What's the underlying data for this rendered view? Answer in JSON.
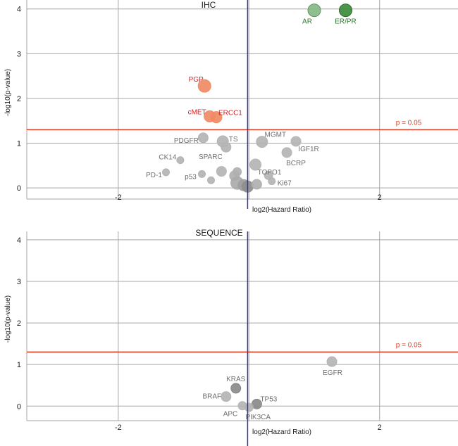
{
  "colors": {
    "grid": "#a6a6a6",
    "vline": "#2e36a8",
    "threshold": "#e03b1c",
    "red_label": "#e0191c",
    "green_label": "#2a7a2a",
    "gray_label": "#6e6e6e",
    "axis_text": "#1a1a1a"
  },
  "chart_data": [
    {
      "type": "scatter",
      "title": "IHC",
      "xlabel": "log2(Hazard Ratio)",
      "ylabel": "-log10(p-value)",
      "xlim": [
        -3.4,
        3.2
      ],
      "ylim": [
        -0.25,
        4.2
      ],
      "xticks": [
        -2,
        2
      ],
      "xtick_labels": [
        "-2",
        "2"
      ],
      "yticks": [
        0,
        1,
        2,
        3,
        4
      ],
      "ytick_labels": [
        "0",
        "1",
        "2",
        "3",
        "4"
      ],
      "x_grid": [
        -2,
        0,
        2
      ],
      "y_grid": [
        0,
        1,
        2,
        3,
        4
      ],
      "center_line_x": -0.02,
      "threshold": {
        "y": 1.301,
        "label": "p = 0.05"
      },
      "points": [
        {
          "label": "AR",
          "x": 1.0,
          "y": 3.97,
          "size": 9,
          "fill": "#86b886",
          "stroke": "#5e965e",
          "label_color": "#2a7a2a"
        },
        {
          "label": "ER/PR",
          "x": 1.48,
          "y": 3.97,
          "size": 9,
          "fill": "#3c8c3c",
          "stroke": "#2a6a2a",
          "label_color": "#2a7a2a"
        },
        {
          "label": "PGP",
          "x": -0.68,
          "y": 2.28,
          "size": 9,
          "fill": "#f08a64",
          "stroke": "#f08a64",
          "label_color": "#e0191c"
        },
        {
          "label": "cMET",
          "x": -0.6,
          "y": 1.6,
          "size": 8,
          "fill": "#f08a64",
          "stroke": "#f08a64",
          "label_color": "#e0191c"
        },
        {
          "label": "ERCC1",
          "x": -0.5,
          "y": 1.58,
          "size": 8,
          "fill": "#f08a64",
          "stroke": "#f08a64",
          "label_color": "#e0191c"
        },
        {
          "label": "PDGFR",
          "x": -0.7,
          "y": 1.12,
          "size": 7,
          "fill": "#b4b4b4",
          "stroke": "#b4b4b4",
          "label_color": "#6e6e6e"
        },
        {
          "label": "TS",
          "x": -0.4,
          "y": 1.04,
          "size": 8,
          "fill": "#b4b4b4",
          "stroke": "#b4b4b4",
          "label_color": "#6e6e6e"
        },
        {
          "label": "SPARC",
          "x": -0.35,
          "y": 0.91,
          "size": 7,
          "fill": "#b4b4b4",
          "stroke": "#b4b4b4",
          "label_color": "#6e6e6e"
        },
        {
          "label": "MGMT",
          "x": 0.2,
          "y": 1.03,
          "size": 8,
          "fill": "#b4b4b4",
          "stroke": "#b4b4b4",
          "label_color": "#6e6e6e"
        },
        {
          "label": "IGF1R",
          "x": 0.72,
          "y": 1.04,
          "size": 7,
          "fill": "#b4b4b4",
          "stroke": "#b4b4b4",
          "label_color": "#6e6e6e"
        },
        {
          "label": "BCRP",
          "x": 0.58,
          "y": 0.79,
          "size": 7,
          "fill": "#b4b4b4",
          "stroke": "#b4b4b4",
          "label_color": "#6e6e6e"
        },
        {
          "label": "CK14",
          "x": -1.05,
          "y": 0.62,
          "size": 5,
          "fill": "#b4b4b4",
          "stroke": "#b4b4b4",
          "label_color": "#6e6e6e"
        },
        {
          "label": "PD-1",
          "x": -1.27,
          "y": 0.35,
          "size": 5,
          "fill": "#b4b4b4",
          "stroke": "#b4b4b4",
          "label_color": "#6e6e6e"
        },
        {
          "label": "p53",
          "x": -0.72,
          "y": 0.31,
          "size": 5,
          "fill": "#b4b4b4",
          "stroke": "#b4b4b4",
          "label_color": "#6e6e6e"
        },
        {
          "label": "TOPO1",
          "x": 0.1,
          "y": 0.52,
          "size": 8,
          "fill": "#b4b4b4",
          "stroke": "#b4b4b4",
          "label_color": "#6e6e6e"
        },
        {
          "label": "Ki67",
          "x": 0.35,
          "y": 0.15,
          "size": 5,
          "fill": "#b4b4b4",
          "stroke": "#b4b4b4",
          "label_color": "#6e6e6e"
        },
        {
          "label": "",
          "x": -0.58,
          "y": 0.17,
          "size": 5,
          "fill": "#b4b4b4",
          "stroke": "#b4b4b4",
          "label_color": "#6e6e6e"
        },
        {
          "label": "",
          "x": -0.42,
          "y": 0.37,
          "size": 7,
          "fill": "#b4b4b4",
          "stroke": "#b4b4b4",
          "label_color": "#6e6e6e"
        },
        {
          "label": "",
          "x": -0.22,
          "y": 0.27,
          "size": 7,
          "fill": "#b0b0b0",
          "stroke": "#b0b0b0",
          "label_color": "#6e6e6e"
        },
        {
          "label": "",
          "x": -0.18,
          "y": 0.36,
          "size": 6,
          "fill": "#b0b0b0",
          "stroke": "#b0b0b0",
          "label_color": "#6e6e6e"
        },
        {
          "label": "",
          "x": -0.18,
          "y": 0.11,
          "size": 9,
          "fill": "#ababab",
          "stroke": "#ababab",
          "label_color": "#6e6e6e"
        },
        {
          "label": "",
          "x": -0.08,
          "y": 0.06,
          "size": 8,
          "fill": "#9f9f9f",
          "stroke": "#9f9f9f",
          "label_color": "#6e6e6e"
        },
        {
          "label": "",
          "x": -0.02,
          "y": 0.03,
          "size": 8,
          "fill": "#8e8e8e",
          "stroke": "#8e8e8e",
          "label_color": "#6e6e6e"
        },
        {
          "label": "",
          "x": 0.12,
          "y": 0.08,
          "size": 7,
          "fill": "#b0b0b0",
          "stroke": "#b0b0b0",
          "label_color": "#6e6e6e"
        },
        {
          "label": "",
          "x": 0.3,
          "y": 0.28,
          "size": 6,
          "fill": "#b4b4b4",
          "stroke": "#b4b4b4",
          "label_color": "#6e6e6e"
        }
      ]
    },
    {
      "type": "scatter",
      "title": "SEQUENCE",
      "xlabel": "log2(Hazard Ratio)",
      "ylabel": "-log10(p-value)",
      "xlim": [
        -3.4,
        3.2
      ],
      "ylim": [
        -0.35,
        4.2
      ],
      "xticks": [
        -2,
        2
      ],
      "xtick_labels": [
        "-2",
        "2"
      ],
      "yticks": [
        0,
        1,
        2,
        3,
        4
      ],
      "ytick_labels": [
        "0",
        "1",
        "2",
        "3",
        "4"
      ],
      "x_grid": [
        -2,
        0,
        2
      ],
      "y_grid": [
        0,
        1,
        2,
        3,
        4
      ],
      "center_line_x": -0.02,
      "threshold": {
        "y": 1.301,
        "label": "p = 0.05"
      },
      "points": [
        {
          "label": "EGFR",
          "x": 1.27,
          "y": 1.07,
          "size": 7,
          "fill": "#b4b4b4",
          "stroke": "#b4b4b4",
          "label_color": "#6e6e6e"
        },
        {
          "label": "KRAS",
          "x": -0.2,
          "y": 0.43,
          "size": 7,
          "fill": "#8a8a8a",
          "stroke": "#8a8a8a",
          "label_color": "#6e6e6e"
        },
        {
          "label": "BRAF",
          "x": -0.35,
          "y": 0.23,
          "size": 7,
          "fill": "#b4b4b4",
          "stroke": "#b4b4b4",
          "label_color": "#6e6e6e"
        },
        {
          "label": "TP53",
          "x": 0.12,
          "y": 0.05,
          "size": 7,
          "fill": "#8a8a8a",
          "stroke": "#8a8a8a",
          "label_color": "#6e6e6e"
        },
        {
          "label": "APC",
          "x": -0.1,
          "y": 0.01,
          "size": 6,
          "fill": "#b4b4b4",
          "stroke": "#b4b4b4",
          "label_color": "#6e6e6e"
        },
        {
          "label": "PIK3CA",
          "x": 0.0,
          "y": -0.03,
          "size": 6,
          "fill": "#b4b4b4",
          "stroke": "#b4b4b4",
          "label_color": "#6e6e6e"
        }
      ]
    }
  ]
}
